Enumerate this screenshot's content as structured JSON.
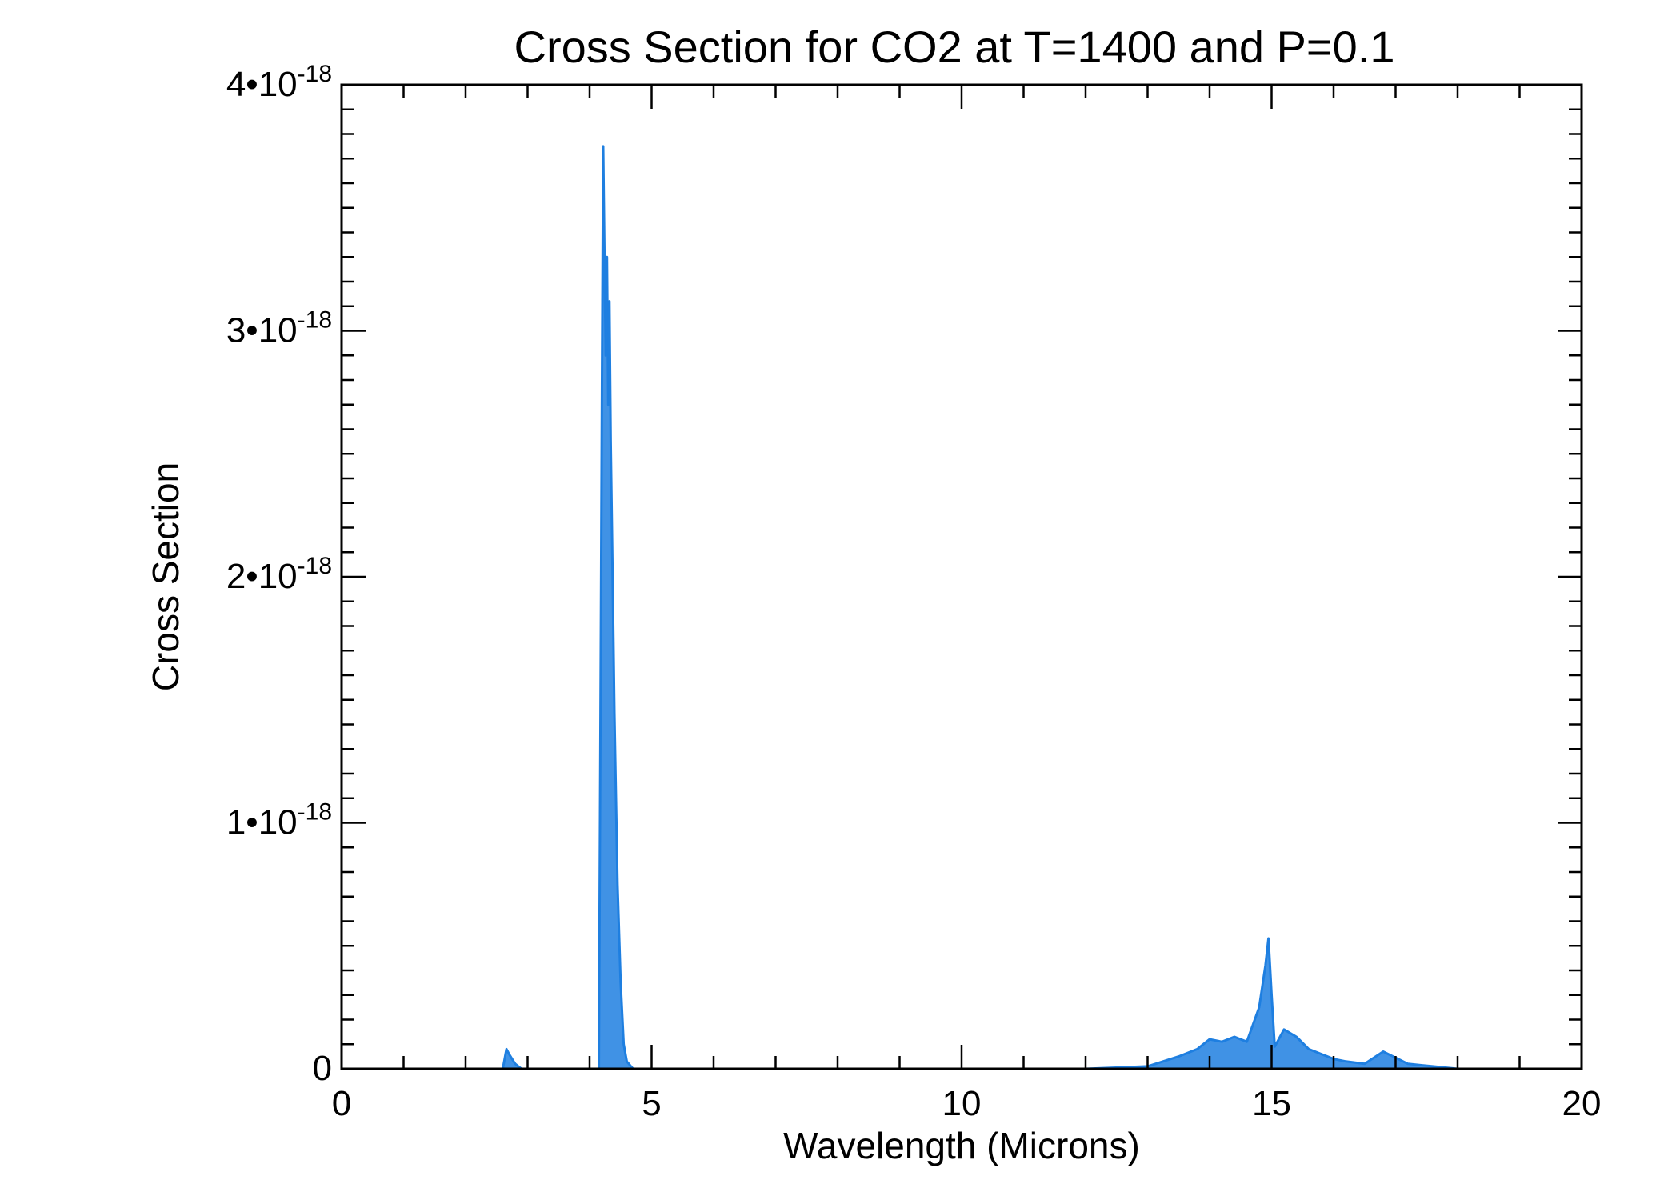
{
  "chart_data": {
    "type": "line",
    "title": "Cross Section for CO2 at T=1400 and P=0.1",
    "xlabel": "Wavelength (Microns)",
    "ylabel": "Cross Section",
    "xlim": [
      0,
      20
    ],
    "ylim": [
      0,
      4e-18
    ],
    "x_ticks": [
      {
        "value": 0,
        "label": "0"
      },
      {
        "value": 5,
        "label": "5"
      },
      {
        "value": 10,
        "label": "10"
      },
      {
        "value": 15,
        "label": "15"
      },
      {
        "value": 20,
        "label": "20"
      }
    ],
    "y_ticks": [
      {
        "value": 0,
        "mantissa": "0",
        "exponent": ""
      },
      {
        "value": 1e-18,
        "mantissa": "1•10",
        "exponent": "-18"
      },
      {
        "value": 2e-18,
        "mantissa": "2•10",
        "exponent": "-18"
      },
      {
        "value": 3e-18,
        "mantissa": "3•10",
        "exponent": "-18"
      },
      {
        "value": 4e-18,
        "mantissa": "4•10",
        "exponent": "-18"
      }
    ],
    "grid": false,
    "series": [
      {
        "color": "#1f7fe0",
        "x": [
          0.0,
          0.8,
          2.6,
          2.66,
          2.7,
          2.75,
          2.8,
          2.85,
          2.9,
          4.15,
          4.2,
          4.22,
          4.24,
          4.26,
          4.28,
          4.3,
          4.32,
          4.34,
          4.36,
          4.4,
          4.45,
          4.5,
          4.55,
          4.6,
          4.7,
          12.0,
          13.0,
          13.5,
          13.8,
          14.0,
          14.2,
          14.4,
          14.6,
          14.8,
          14.9,
          14.95,
          15.0,
          15.05,
          15.2,
          15.4,
          15.6,
          15.8,
          16.0,
          16.2,
          16.5,
          16.8,
          17.2,
          17.6,
          18.0,
          20.0
        ],
        "y": [
          0,
          0,
          0,
          8e-20,
          6e-20,
          4e-20,
          2e-20,
          1e-20,
          0,
          0,
          2.8e-18,
          3.75e-18,
          3.3e-18,
          2.9e-18,
          3.3e-18,
          2.7e-18,
          3.12e-18,
          2.55e-18,
          2.2e-18,
          1.45e-18,
          7.5e-19,
          3.5e-19,
          1e-19,
          3e-20,
          0,
          0,
          1e-20,
          5e-20,
          8e-20,
          1.2e-19,
          1.1e-19,
          1.3e-19,
          1.1e-19,
          2.5e-19,
          4.2e-19,
          5.3e-19,
          3e-19,
          9e-20,
          1.6e-19,
          1.3e-19,
          8e-20,
          6e-20,
          4e-20,
          3e-20,
          2e-20,
          7e-20,
          2e-20,
          1e-20,
          0,
          0
        ]
      }
    ]
  }
}
